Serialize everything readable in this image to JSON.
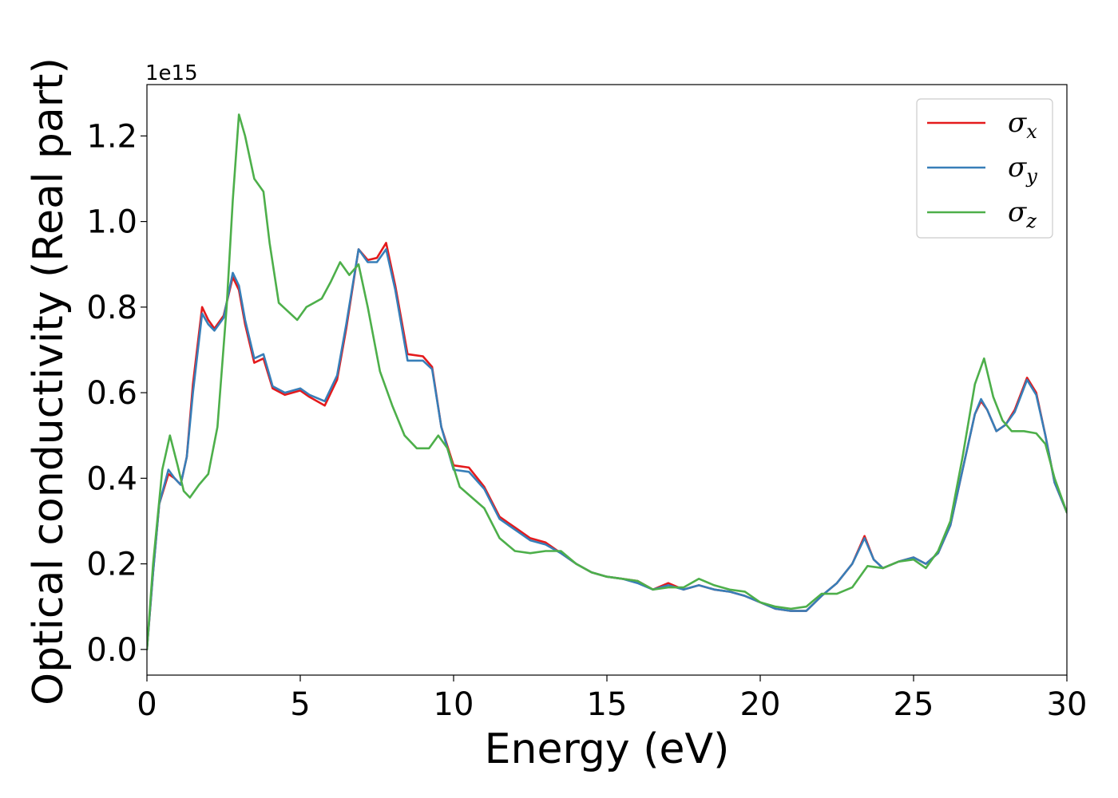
{
  "chart_data": {
    "type": "line",
    "xlabel": "Energy (eV)",
    "ylabel": "Optical conductivity (Real part)",
    "y_offset_label": "1e15",
    "xlim": [
      0,
      30
    ],
    "ylim": [
      -0.06,
      1.32
    ],
    "xticks": [
      0,
      5,
      10,
      15,
      20,
      25,
      30
    ],
    "xtick_labels": [
      "0",
      "5",
      "10",
      "15",
      "20",
      "25",
      "30"
    ],
    "yticks": [
      0.0,
      0.2,
      0.4,
      0.6,
      0.8,
      1.0,
      1.2
    ],
    "ytick_labels": [
      "0.0",
      "0.2",
      "0.4",
      "0.6",
      "0.8",
      "1.0",
      "1.2"
    ],
    "grid": false,
    "legend_position": "top-right",
    "series": [
      {
        "name": "σx",
        "legend_symbol": "σ",
        "legend_subscript": "x",
        "color": "#e41a1c",
        "points": [
          [
            0,
            0
          ],
          [
            0.2,
            0.18
          ],
          [
            0.4,
            0.34
          ],
          [
            0.7,
            0.41
          ],
          [
            0.9,
            0.4
          ],
          [
            1.1,
            0.385
          ],
          [
            1.3,
            0.45
          ],
          [
            1.5,
            0.62
          ],
          [
            1.8,
            0.8
          ],
          [
            2.0,
            0.77
          ],
          [
            2.2,
            0.75
          ],
          [
            2.5,
            0.78
          ],
          [
            2.8,
            0.87
          ],
          [
            3.0,
            0.84
          ],
          [
            3.2,
            0.76
          ],
          [
            3.5,
            0.67
          ],
          [
            3.8,
            0.68
          ],
          [
            4.1,
            0.61
          ],
          [
            4.5,
            0.595
          ],
          [
            5.0,
            0.605
          ],
          [
            5.3,
            0.59
          ],
          [
            5.8,
            0.57
          ],
          [
            6.2,
            0.63
          ],
          [
            6.5,
            0.75
          ],
          [
            6.9,
            0.935
          ],
          [
            7.2,
            0.91
          ],
          [
            7.5,
            0.915
          ],
          [
            7.8,
            0.95
          ],
          [
            8.1,
            0.85
          ],
          [
            8.5,
            0.69
          ],
          [
            9.0,
            0.685
          ],
          [
            9.3,
            0.66
          ],
          [
            9.6,
            0.52
          ],
          [
            10.0,
            0.43
          ],
          [
            10.5,
            0.425
          ],
          [
            11.0,
            0.38
          ],
          [
            11.5,
            0.31
          ],
          [
            12.0,
            0.285
          ],
          [
            12.5,
            0.26
          ],
          [
            13.0,
            0.25
          ],
          [
            13.5,
            0.225
          ],
          [
            14.0,
            0.2
          ],
          [
            14.5,
            0.18
          ],
          [
            15.0,
            0.17
          ],
          [
            15.5,
            0.165
          ],
          [
            16.0,
            0.16
          ],
          [
            16.5,
            0.14
          ],
          [
            17.0,
            0.155
          ],
          [
            17.5,
            0.14
          ],
          [
            18.0,
            0.15
          ],
          [
            18.5,
            0.14
          ],
          [
            19.0,
            0.135
          ],
          [
            19.5,
            0.125
          ],
          [
            20.0,
            0.11
          ],
          [
            20.5,
            0.095
          ],
          [
            21.0,
            0.09
          ],
          [
            21.5,
            0.09
          ],
          [
            22.0,
            0.125
          ],
          [
            22.5,
            0.155
          ],
          [
            23.0,
            0.2
          ],
          [
            23.4,
            0.265
          ],
          [
            23.7,
            0.21
          ],
          [
            24.0,
            0.19
          ],
          [
            24.5,
            0.205
          ],
          [
            25.0,
            0.215
          ],
          [
            25.4,
            0.2
          ],
          [
            25.8,
            0.225
          ],
          [
            26.2,
            0.29
          ],
          [
            26.6,
            0.42
          ],
          [
            27.0,
            0.55
          ],
          [
            27.2,
            0.58
          ],
          [
            27.4,
            0.56
          ],
          [
            27.7,
            0.51
          ],
          [
            28.0,
            0.525
          ],
          [
            28.3,
            0.56
          ],
          [
            28.7,
            0.635
          ],
          [
            29.0,
            0.6
          ],
          [
            29.3,
            0.5
          ],
          [
            29.6,
            0.39
          ],
          [
            30.0,
            0.32
          ]
        ]
      },
      {
        "name": "σy",
        "legend_symbol": "σ",
        "legend_subscript": "y",
        "color": "#377eb8",
        "points": [
          [
            0,
            0
          ],
          [
            0.2,
            0.18
          ],
          [
            0.4,
            0.34
          ],
          [
            0.7,
            0.42
          ],
          [
            0.9,
            0.4
          ],
          [
            1.1,
            0.385
          ],
          [
            1.3,
            0.45
          ],
          [
            1.5,
            0.6
          ],
          [
            1.8,
            0.785
          ],
          [
            2.0,
            0.76
          ],
          [
            2.2,
            0.745
          ],
          [
            2.5,
            0.775
          ],
          [
            2.8,
            0.88
          ],
          [
            3.0,
            0.85
          ],
          [
            3.2,
            0.77
          ],
          [
            3.5,
            0.68
          ],
          [
            3.8,
            0.69
          ],
          [
            4.1,
            0.615
          ],
          [
            4.5,
            0.6
          ],
          [
            5.0,
            0.61
          ],
          [
            5.3,
            0.595
          ],
          [
            5.8,
            0.58
          ],
          [
            6.2,
            0.64
          ],
          [
            6.5,
            0.76
          ],
          [
            6.9,
            0.935
          ],
          [
            7.2,
            0.905
          ],
          [
            7.5,
            0.905
          ],
          [
            7.8,
            0.935
          ],
          [
            8.1,
            0.84
          ],
          [
            8.5,
            0.675
          ],
          [
            9.0,
            0.675
          ],
          [
            9.3,
            0.655
          ],
          [
            9.6,
            0.52
          ],
          [
            10.0,
            0.42
          ],
          [
            10.5,
            0.415
          ],
          [
            11.0,
            0.375
          ],
          [
            11.5,
            0.305
          ],
          [
            12.0,
            0.28
          ],
          [
            12.5,
            0.255
          ],
          [
            13.0,
            0.245
          ],
          [
            13.5,
            0.225
          ],
          [
            14.0,
            0.2
          ],
          [
            14.5,
            0.18
          ],
          [
            15.0,
            0.17
          ],
          [
            15.5,
            0.165
          ],
          [
            16.0,
            0.155
          ],
          [
            16.5,
            0.14
          ],
          [
            17.0,
            0.15
          ],
          [
            17.5,
            0.14
          ],
          [
            18.0,
            0.15
          ],
          [
            18.5,
            0.14
          ],
          [
            19.0,
            0.135
          ],
          [
            19.5,
            0.125
          ],
          [
            20.0,
            0.11
          ],
          [
            20.5,
            0.095
          ],
          [
            21.0,
            0.09
          ],
          [
            21.5,
            0.09
          ],
          [
            22.0,
            0.125
          ],
          [
            22.5,
            0.155
          ],
          [
            23.0,
            0.2
          ],
          [
            23.4,
            0.26
          ],
          [
            23.7,
            0.21
          ],
          [
            24.0,
            0.19
          ],
          [
            24.5,
            0.205
          ],
          [
            25.0,
            0.215
          ],
          [
            25.4,
            0.2
          ],
          [
            25.8,
            0.225
          ],
          [
            26.2,
            0.29
          ],
          [
            26.6,
            0.42
          ],
          [
            27.0,
            0.55
          ],
          [
            27.2,
            0.585
          ],
          [
            27.4,
            0.56
          ],
          [
            27.7,
            0.51
          ],
          [
            28.0,
            0.525
          ],
          [
            28.3,
            0.555
          ],
          [
            28.7,
            0.63
          ],
          [
            29.0,
            0.595
          ],
          [
            29.3,
            0.5
          ],
          [
            29.6,
            0.39
          ],
          [
            30.0,
            0.32
          ]
        ]
      },
      {
        "name": "σz",
        "legend_symbol": "σ",
        "legend_subscript": "z",
        "color": "#4daf4a",
        "points": [
          [
            0,
            0
          ],
          [
            0.2,
            0.2
          ],
          [
            0.5,
            0.42
          ],
          [
            0.75,
            0.5
          ],
          [
            1.0,
            0.43
          ],
          [
            1.2,
            0.37
          ],
          [
            1.4,
            0.355
          ],
          [
            1.7,
            0.385
          ],
          [
            2.0,
            0.41
          ],
          [
            2.3,
            0.52
          ],
          [
            2.6,
            0.8
          ],
          [
            2.8,
            1.05
          ],
          [
            3.0,
            1.25
          ],
          [
            3.2,
            1.2
          ],
          [
            3.5,
            1.1
          ],
          [
            3.8,
            1.07
          ],
          [
            4.0,
            0.95
          ],
          [
            4.3,
            0.81
          ],
          [
            4.6,
            0.79
          ],
          [
            4.9,
            0.77
          ],
          [
            5.2,
            0.8
          ],
          [
            5.7,
            0.82
          ],
          [
            6.0,
            0.86
          ],
          [
            6.3,
            0.905
          ],
          [
            6.6,
            0.875
          ],
          [
            6.9,
            0.9
          ],
          [
            7.2,
            0.8
          ],
          [
            7.6,
            0.65
          ],
          [
            8.0,
            0.57
          ],
          [
            8.4,
            0.5
          ],
          [
            8.8,
            0.47
          ],
          [
            9.2,
            0.47
          ],
          [
            9.5,
            0.5
          ],
          [
            9.8,
            0.47
          ],
          [
            10.2,
            0.38
          ],
          [
            10.6,
            0.355
          ],
          [
            11.0,
            0.33
          ],
          [
            11.5,
            0.26
          ],
          [
            12.0,
            0.23
          ],
          [
            12.5,
            0.225
          ],
          [
            13.0,
            0.23
          ],
          [
            13.5,
            0.23
          ],
          [
            14.0,
            0.2
          ],
          [
            14.5,
            0.18
          ],
          [
            15.0,
            0.17
          ],
          [
            15.5,
            0.165
          ],
          [
            16.0,
            0.16
          ],
          [
            16.5,
            0.14
          ],
          [
            17.0,
            0.145
          ],
          [
            17.5,
            0.145
          ],
          [
            18.0,
            0.165
          ],
          [
            18.5,
            0.15
          ],
          [
            19.0,
            0.14
          ],
          [
            19.5,
            0.135
          ],
          [
            20.0,
            0.11
          ],
          [
            20.5,
            0.1
          ],
          [
            21.0,
            0.095
          ],
          [
            21.5,
            0.1
          ],
          [
            22.0,
            0.13
          ],
          [
            22.5,
            0.13
          ],
          [
            23.0,
            0.145
          ],
          [
            23.5,
            0.195
          ],
          [
            24.0,
            0.19
          ],
          [
            24.5,
            0.205
          ],
          [
            25.0,
            0.21
          ],
          [
            25.4,
            0.19
          ],
          [
            25.8,
            0.23
          ],
          [
            26.2,
            0.3
          ],
          [
            26.6,
            0.45
          ],
          [
            27.0,
            0.62
          ],
          [
            27.3,
            0.68
          ],
          [
            27.6,
            0.59
          ],
          [
            27.9,
            0.535
          ],
          [
            28.2,
            0.51
          ],
          [
            28.6,
            0.51
          ],
          [
            29.0,
            0.505
          ],
          [
            29.3,
            0.48
          ],
          [
            29.6,
            0.4
          ],
          [
            30.0,
            0.32
          ]
        ]
      }
    ]
  }
}
